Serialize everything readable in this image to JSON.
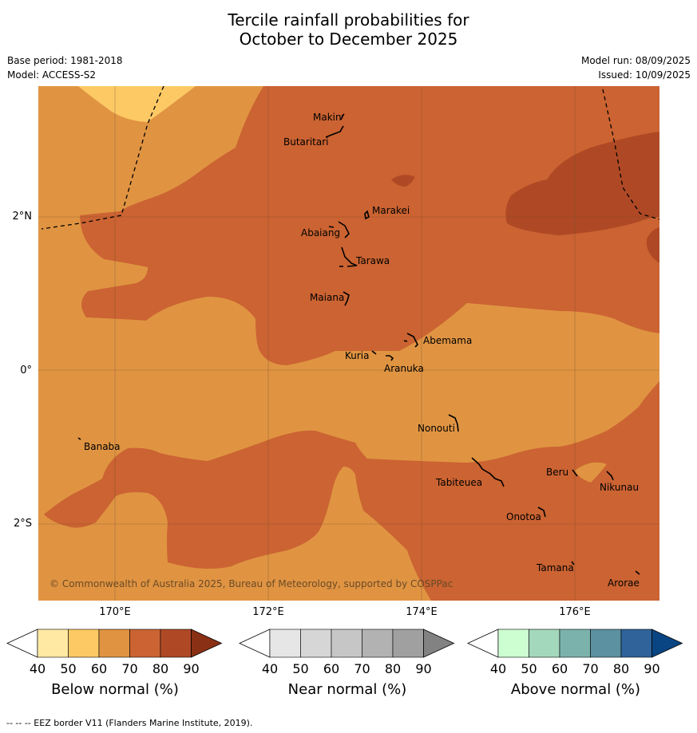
{
  "header": {
    "title_line1": "Tercile rainfall probabilities for",
    "title_line2": "October to December 2025",
    "base_period": "Base period: 1981-2018",
    "model": "Model: ACCESS-S2",
    "model_run": "Model run: 08/09/2025",
    "issued": "Issued: 10/09/2025"
  },
  "map": {
    "lat_labels": [
      "2°N",
      "0°",
      "2°S"
    ],
    "lon_labels": [
      "170°E",
      "172°E",
      "174°E",
      "176°E"
    ],
    "copyright": "© Commonwealth of Australia 2025, Bureau of Meteorology, supported by COSPPac",
    "islands": [
      {
        "name": "Makin"
      },
      {
        "name": "Butaritari"
      },
      {
        "name": "Marakei"
      },
      {
        "name": "Abaiang"
      },
      {
        "name": "Tarawa"
      },
      {
        "name": "Maiana"
      },
      {
        "name": "Abemama"
      },
      {
        "name": "Kuria"
      },
      {
        "name": "Aranuka"
      },
      {
        "name": "Nonouti"
      },
      {
        "name": "Banaba"
      },
      {
        "name": "Beru"
      },
      {
        "name": "Nikunau"
      },
      {
        "name": "Tabiteuea"
      },
      {
        "name": "Onotoa"
      },
      {
        "name": "Tamana"
      },
      {
        "name": "Arorae"
      }
    ],
    "colors": {
      "below_60": "#e09442",
      "below_70": "#cb6332",
      "below_80": "#af4925",
      "below_50": "#fdc965"
    }
  },
  "colorbars": [
    {
      "label": "Below normal (%)",
      "ticks": [
        "40",
        "50",
        "60",
        "70",
        "80",
        "90"
      ],
      "colors": [
        "#ffffff",
        "#ffe9a3",
        "#fdc965",
        "#e09442",
        "#cb6332",
        "#af4925",
        "#8a3015"
      ]
    },
    {
      "label": "Near normal (%)",
      "ticks": [
        "40",
        "50",
        "60",
        "70",
        "80",
        "90"
      ],
      "colors": [
        "#ffffff",
        "#e6e6e6",
        "#d6d6d6",
        "#c6c6c6",
        "#b2b2b2",
        "#a0a0a0",
        "#828282"
      ]
    },
    {
      "label": "Above normal (%)",
      "ticks": [
        "40",
        "50",
        "60",
        "70",
        "80",
        "90"
      ],
      "colors": [
        "#ffffff",
        "#cdfed2",
        "#a3d8bc",
        "#7bb3ac",
        "#5b91a0",
        "#2f6399",
        "#0a4583"
      ]
    }
  ],
  "footer": "--  --  -- EEZ border V11 (Flanders Marine Institute, 2019)."
}
